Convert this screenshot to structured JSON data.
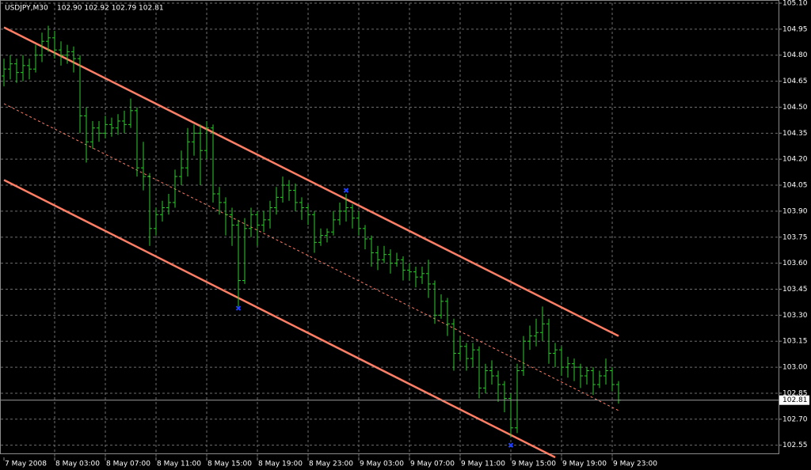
{
  "chart_data": {
    "type": "ohlc",
    "title": "USDJPY,M30",
    "subtitle": "102.90 102.92 102.79 102.81",
    "categories": [
      "7 May 2008",
      null,
      null,
      null,
      null,
      null,
      null,
      null,
      "8 May 03:00",
      null,
      null,
      null,
      null,
      null,
      null,
      null,
      "8 May 07:00",
      null,
      null,
      null,
      null,
      null,
      null,
      null,
      "8 May 11:00",
      null,
      null,
      null,
      null,
      null,
      null,
      null,
      "8 May 15:00",
      null,
      null,
      null,
      null,
      null,
      null,
      null,
      "8 May 19:00",
      null,
      null,
      null,
      null,
      null,
      null,
      null,
      "8 May 23:00",
      null,
      null,
      null,
      null,
      null,
      null,
      null,
      "9 May 03:00",
      null,
      null,
      null,
      null,
      null,
      null,
      null,
      "9 May 07:00",
      null,
      null,
      null,
      null,
      null,
      null,
      null,
      "9 May 11:00",
      null,
      null,
      null,
      null,
      null,
      null,
      null,
      "9 May 15:00",
      null,
      null,
      null,
      null,
      null,
      null,
      null,
      "9 May 19:00",
      null,
      null,
      null,
      null,
      null,
      null,
      null,
      "9 May 23:00",
      null
    ],
    "open": [
      104.68,
      104.72,
      104.75,
      104.7,
      104.74,
      104.72,
      104.8,
      104.88,
      104.9,
      104.83,
      104.8,
      104.82,
      104.78,
      104.45,
      104.3,
      104.38,
      104.35,
      104.4,
      104.38,
      104.42,
      104.4,
      104.48,
      104.15,
      104.1,
      103.8,
      103.88,
      103.92,
      103.95,
      104.1,
      104.15,
      104.3,
      104.35,
      104.25,
      104.38,
      104.0,
      103.95,
      103.88,
      103.82,
      103.5,
      103.8,
      103.88,
      103.82,
      103.85,
      103.92,
      103.98,
      104.05,
      104.02,
      103.95,
      103.92,
      103.88,
      103.72,
      103.76,
      103.78,
      103.85,
      103.9,
      103.92,
      103.86,
      103.8,
      103.74,
      103.66,
      103.62,
      103.65,
      103.6,
      103.62,
      103.56,
      103.55,
      103.52,
      103.54,
      103.48,
      103.3,
      103.38,
      103.25,
      103.08,
      103.12,
      103.05,
      103.1,
      102.88,
      102.98,
      102.95,
      102.9,
      102.82,
      102.65,
      102.98,
      103.15,
      103.18,
      103.2,
      103.25,
      103.08,
      103.1,
      103.0,
      103.02,
      103.0,
      102.95,
      102.98,
      102.9,
      102.95,
      102.98,
      102.9
    ],
    "high": [
      104.78,
      104.8,
      104.78,
      104.8,
      104.78,
      104.86,
      104.93,
      104.97,
      104.94,
      104.88,
      104.86,
      104.85,
      104.8,
      104.5,
      104.42,
      104.42,
      104.45,
      104.44,
      104.46,
      104.48,
      104.55,
      104.5,
      104.3,
      104.12,
      103.92,
      103.96,
      104.0,
      104.14,
      104.25,
      104.38,
      104.4,
      104.4,
      104.42,
      104.4,
      104.04,
      103.98,
      103.92,
      103.85,
      103.86,
      103.92,
      103.9,
      103.9,
      103.96,
      104.04,
      104.1,
      104.08,
      104.06,
      103.98,
      103.94,
      103.9,
      103.8,
      103.8,
      103.9,
      103.95,
      104.0,
      103.94,
      103.9,
      103.82,
      103.76,
      103.7,
      103.7,
      103.68,
      103.66,
      103.64,
      103.6,
      103.58,
      103.58,
      103.62,
      103.5,
      103.42,
      103.4,
      103.28,
      103.18,
      103.14,
      103.14,
      103.12,
      103.02,
      103.04,
      102.98,
      102.92,
      102.85,
      103.02,
      103.18,
      103.24,
      103.28,
      103.35,
      103.28,
      103.14,
      103.12,
      103.06,
      103.05,
      103.02,
      103.0,
      103.0,
      102.98,
      103.05,
      103.0,
      102.92
    ],
    "low": [
      104.62,
      104.66,
      104.64,
      104.65,
      104.66,
      104.7,
      104.76,
      104.82,
      104.78,
      104.74,
      104.75,
      104.7,
      104.35,
      104.18,
      104.26,
      104.3,
      104.32,
      104.33,
      104.34,
      104.35,
      104.38,
      104.1,
      104.02,
      103.7,
      103.76,
      103.84,
      103.88,
      103.92,
      104.05,
      104.1,
      104.22,
      104.05,
      104.2,
      103.95,
      103.88,
      103.76,
      103.7,
      103.35,
      103.48,
      103.75,
      103.7,
      103.78,
      103.8,
      103.88,
      103.95,
      103.96,
      103.9,
      103.85,
      103.82,
      103.66,
      103.7,
      103.72,
      103.76,
      103.82,
      103.84,
      103.8,
      103.76,
      103.68,
      103.58,
      103.56,
      103.6,
      103.54,
      103.58,
      103.5,
      103.5,
      103.46,
      103.48,
      103.4,
      103.25,
      103.28,
      103.18,
      102.98,
      103.04,
      102.98,
      103.0,
      102.82,
      102.85,
      102.9,
      102.8,
      102.74,
      102.6,
      102.62,
      102.95,
      103.1,
      103.12,
      103.15,
      103.02,
      103.0,
      102.95,
      102.94,
      102.92,
      102.88,
      102.9,
      102.84,
      102.88,
      102.9,
      102.86,
      102.79
    ],
    "close": [
      104.72,
      104.75,
      104.7,
      104.74,
      104.72,
      104.8,
      104.88,
      104.9,
      104.83,
      104.8,
      104.82,
      104.78,
      104.45,
      104.3,
      104.38,
      104.35,
      104.4,
      104.38,
      104.42,
      104.4,
      104.48,
      104.15,
      104.1,
      103.8,
      103.88,
      103.92,
      103.95,
      104.1,
      104.15,
      104.3,
      104.35,
      104.25,
      104.38,
      104.0,
      103.95,
      103.88,
      103.82,
      103.5,
      103.8,
      103.88,
      103.82,
      103.85,
      103.92,
      103.98,
      104.05,
      104.02,
      103.95,
      103.92,
      103.88,
      103.72,
      103.76,
      103.78,
      103.85,
      103.9,
      103.92,
      103.86,
      103.8,
      103.74,
      103.66,
      103.62,
      103.65,
      103.6,
      103.62,
      103.56,
      103.55,
      103.52,
      103.54,
      103.48,
      103.3,
      103.38,
      103.25,
      103.08,
      103.12,
      103.05,
      103.1,
      102.88,
      102.98,
      102.95,
      102.9,
      102.82,
      102.65,
      102.98,
      103.15,
      103.18,
      103.2,
      103.25,
      103.08,
      103.1,
      103.0,
      103.02,
      103.0,
      102.95,
      102.98,
      102.9,
      102.95,
      102.98,
      102.9,
      102.81
    ],
    "color": "#2ecc2e",
    "ylim": [
      102.48,
      105.1
    ],
    "yticks": [
      102.55,
      {
        "value": 102.7,
        "label": "102.70"
      },
      102.85,
      {
        "value": 103.0,
        "label": "103.00"
      },
      103.15,
      {
        "value": 103.3,
        "label": "103.30"
      },
      103.45,
      {
        "value": 103.6,
        "label": "103.60"
      },
      103.75,
      {
        "value": 103.9,
        "label": "103.90"
      },
      104.05,
      {
        "value": 104.2,
        "label": "104.20"
      },
      104.35,
      {
        "value": 104.5,
        "label": "104.50"
      },
      104.65,
      {
        "value": 104.8,
        "label": "104.80"
      },
      104.95,
      {
        "value": 105.1,
        "label": "105.10"
      }
    ],
    "grid": true,
    "current_price": 102.81,
    "channels": [
      {
        "x": [
          0,
          97
        ],
        "values": [
          104.96,
          103.18
        ],
        "style": "solid",
        "color": "#ff7f66"
      },
      {
        "x": [
          0,
          97
        ],
        "values": [
          104.52,
          102.75
        ],
        "style": "dashed",
        "color": "#ff7f66"
      },
      {
        "x": [
          0,
          87
        ],
        "values": [
          104.08,
          102.48
        ],
        "style": "solid",
        "color": "#ff7f66"
      }
    ],
    "markers": {
      "x": [
        54,
        37,
        80
      ],
      "values": [
        104.02,
        103.34,
        102.55
      ],
      "color": "#2040ff"
    }
  }
}
